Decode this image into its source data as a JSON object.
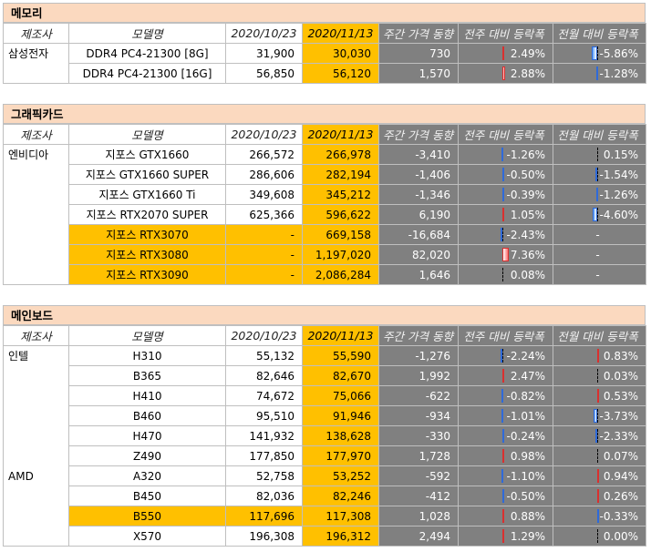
{
  "columns": {
    "maker": "제조사",
    "model": "모델명",
    "date1": "2020/10/23",
    "date2": "2020/11/13",
    "weekly_change": "주간 가격 동향",
    "wow_rate": "전주 대비 등락폭",
    "mom_rate": "전월 대비 등락폭"
  },
  "sections": [
    {
      "title": "메모리",
      "rows": [
        {
          "maker": "삼성전자",
          "model": "DDR4 PC4-21300 [8G]",
          "p1": "31,900",
          "p2": "30,030",
          "chg": "730",
          "wow": "2.49%",
          "mom": "-5.86%",
          "wow_v": 2.49,
          "mom_v": -5.86,
          "hl": false
        },
        {
          "maker": "",
          "model": "DDR4 PC4-21300 [16G]",
          "p1": "56,850",
          "p2": "56,120",
          "chg": "1,570",
          "wow": "2.88%",
          "mom": "-1.28%",
          "wow_v": 2.88,
          "mom_v": -1.28,
          "hl": false
        }
      ]
    },
    {
      "title": "그래픽카드",
      "rows": [
        {
          "maker": "엔비디아",
          "model": "지포스 GTX1660",
          "p1": "266,572",
          "p2": "266,978",
          "chg": "-3,410",
          "wow": "-1.26%",
          "mom": "0.15%",
          "wow_v": -1.26,
          "mom_v": 0.15,
          "hl": false
        },
        {
          "maker": "",
          "model": "지포스 GTX1660 SUPER",
          "p1": "286,606",
          "p2": "282,194",
          "chg": "-1,406",
          "wow": "-0.50%",
          "mom": "-1.54%",
          "wow_v": -0.5,
          "mom_v": -1.54,
          "hl": false
        },
        {
          "maker": "",
          "model": "지포스 GTX1660 Ti",
          "p1": "349,608",
          "p2": "345,212",
          "chg": "-1,346",
          "wow": "-0.39%",
          "mom": "-1.26%",
          "wow_v": -0.39,
          "mom_v": -1.26,
          "hl": false
        },
        {
          "maker": "",
          "model": "지포스 RTX2070 SUPER",
          "p1": "625,366",
          "p2": "596,622",
          "chg": "6,190",
          "wow": "1.05%",
          "mom": "-4.60%",
          "wow_v": 1.05,
          "mom_v": -4.6,
          "hl": false
        },
        {
          "maker": "",
          "model": "지포스 RTX3070",
          "p1": "-",
          "p2": "669,158",
          "chg": "-16,684",
          "wow": "-2.43%",
          "mom": "-",
          "wow_v": -2.43,
          "mom_v": null,
          "hl": true
        },
        {
          "maker": "",
          "model": "지포스 RTX3080",
          "p1": "-",
          "p2": "1,197,020",
          "chg": "82,020",
          "wow": "7.36%",
          "mom": "-",
          "wow_v": 7.36,
          "mom_v": null,
          "hl": true
        },
        {
          "maker": "",
          "model": "지포스 RTX3090",
          "p1": "-",
          "p2": "2,086,284",
          "chg": "1,646",
          "wow": "0.08%",
          "mom": "-",
          "wow_v": 0.08,
          "mom_v": null,
          "hl": true
        }
      ]
    },
    {
      "title": "메인보드",
      "rows": [
        {
          "maker": "인텔",
          "model": "H310",
          "p1": "55,132",
          "p2": "55,590",
          "chg": "-1,276",
          "wow": "-2.24%",
          "mom": "0.83%",
          "wow_v": -2.24,
          "mom_v": 0.83,
          "hl": false
        },
        {
          "maker": "",
          "model": "B365",
          "p1": "82,646",
          "p2": "82,670",
          "chg": "1,992",
          "wow": "2.47%",
          "mom": "0.03%",
          "wow_v": 2.47,
          "mom_v": 0.03,
          "hl": false
        },
        {
          "maker": "",
          "model": "H410",
          "p1": "74,672",
          "p2": "75,066",
          "chg": "-622",
          "wow": "-0.82%",
          "mom": "0.53%",
          "wow_v": -0.82,
          "mom_v": 0.53,
          "hl": false
        },
        {
          "maker": "",
          "model": "B460",
          "p1": "95,510",
          "p2": "91,946",
          "chg": "-934",
          "wow": "-1.01%",
          "mom": "-3.73%",
          "wow_v": -1.01,
          "mom_v": -3.73,
          "hl": false
        },
        {
          "maker": "",
          "model": "H470",
          "p1": "141,932",
          "p2": "138,628",
          "chg": "-330",
          "wow": "-0.24%",
          "mom": "-2.33%",
          "wow_v": -0.24,
          "mom_v": -2.33,
          "hl": false
        },
        {
          "maker": "",
          "model": "Z490",
          "p1": "177,850",
          "p2": "177,970",
          "chg": "1,728",
          "wow": "0.98%",
          "mom": "0.07%",
          "wow_v": 0.98,
          "mom_v": 0.07,
          "hl": false
        },
        {
          "maker": "AMD",
          "model": "A320",
          "p1": "52,758",
          "p2": "53,252",
          "chg": "-592",
          "wow": "-1.10%",
          "mom": "0.94%",
          "wow_v": -1.1,
          "mom_v": 0.94,
          "hl": false
        },
        {
          "maker": "",
          "model": "B450",
          "p1": "82,036",
          "p2": "82,246",
          "chg": "-412",
          "wow": "-0.50%",
          "mom": "0.26%",
          "wow_v": -0.5,
          "mom_v": 0.26,
          "hl": false
        },
        {
          "maker": "",
          "model": "B550",
          "p1": "117,696",
          "p2": "117,308",
          "chg": "1,028",
          "wow": "0.88%",
          "mom": "-0.33%",
          "wow_v": 0.88,
          "mom_v": -0.33,
          "hl": true
        },
        {
          "maker": "",
          "model": "X570",
          "p1": "196,308",
          "p2": "196,312",
          "chg": "2,494",
          "wow": "1.29%",
          "mom": "0.00%",
          "wow_v": 1.29,
          "mom_v": 0.0,
          "hl": false
        }
      ]
    }
  ],
  "colors": {
    "section_header": "#fbd9bf",
    "highlight": "#ffc000",
    "dark_cell": "#808080",
    "bar_positive": "#ff7070",
    "bar_negative": "#5aa0ff"
  }
}
